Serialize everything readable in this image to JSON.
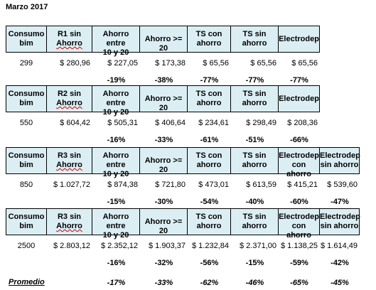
{
  "title": "Marzo 2017",
  "blocks": [
    {
      "headers": [
        "Consumo bim",
        "R1 sin Ahorro",
        "Ahorro entre 10 y 20",
        "Ahorro >= 20",
        "TS con ahorro",
        "TS sin ahorro",
        "Electrodep"
      ],
      "values": [
        "299",
        "$ 280,96",
        "$ 227,05",
        "$ 173,38",
        "$ 65,56",
        "$ 65,56",
        "$ 65,56"
      ],
      "percents": [
        "",
        "",
        "-19%",
        "-38%",
        "-77%",
        "-77%",
        "-77%"
      ]
    },
    {
      "headers": [
        "Consumo bim",
        "R2 sin Ahorro",
        "Ahorro entre 10 y 20",
        "Ahorro >= 20",
        "TS con ahorro",
        "TS sin ahorro",
        "Electrodep"
      ],
      "values": [
        "550",
        "$ 604,42",
        "$ 505,31",
        "$ 406,64",
        "$ 234,61",
        "$ 298,49",
        "$ 208,36"
      ],
      "percents": [
        "",
        "",
        "-16%",
        "-33%",
        "-61%",
        "-51%",
        "-66%"
      ]
    },
    {
      "headers": [
        "Consumo bim",
        "R3 sin Ahorro",
        "Ahorro entre 10 y 20",
        "Ahorro >= 20",
        "TS con ahorro",
        "TS sin ahorro",
        "Electrodep con ahorro",
        "Electrodep sin ahorro"
      ],
      "values": [
        "850",
        "$ 1.027,72",
        "$ 874,38",
        "$ 721,80",
        "$ 473,01",
        "$ 613,59",
        "$ 415,21",
        "$ 539,60"
      ],
      "percents": [
        "",
        "",
        "-15%",
        "-30%",
        "-54%",
        "-40%",
        "-60%",
        "-47%"
      ]
    },
    {
      "headers": [
        "Consumo bim",
        "R3 sin Ahorro",
        "Ahorro entre 10 y 20",
        "Ahorro >= 20",
        "TS con ahorro",
        "TS sin ahorro",
        "Electrodep con ahorro",
        "Electrodep sin ahorro"
      ],
      "values": [
        "2500",
        "$ 2.803,12",
        "$ 2.352,12",
        "$ 1.903,37",
        "$ 1.232,84",
        "$ 2.371,00",
        "$ 1.138,25",
        "$ 1.614,49"
      ],
      "percents": [
        "",
        "",
        "-16%",
        "-32%",
        "-56%",
        "-15%",
        "-59%",
        "-42%"
      ]
    }
  ],
  "promedio": {
    "label": "Promedio",
    "values": [
      "-17%",
      "-33%",
      "-62%",
      "-46%",
      "-65%",
      "-45%"
    ]
  }
}
